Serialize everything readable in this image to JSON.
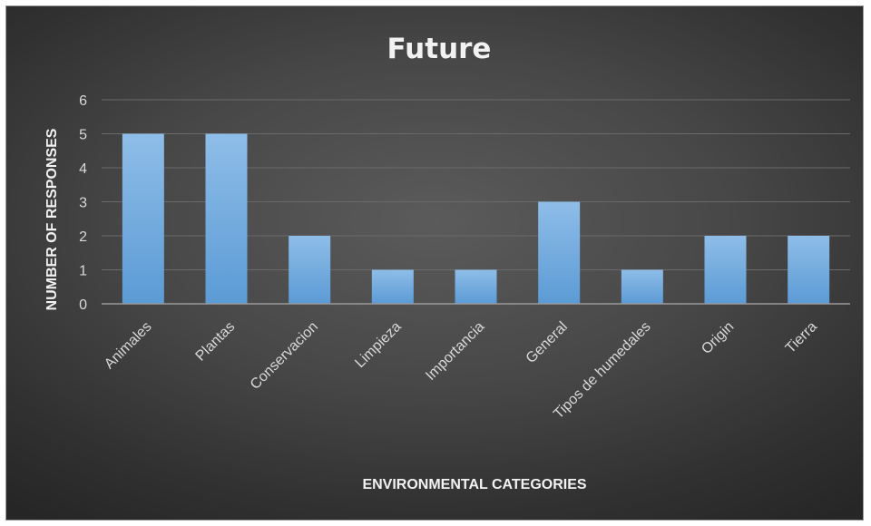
{
  "chart_data": {
    "type": "bar",
    "title": "Future",
    "xlabel": "ENVIRONMENTAL CATEGORIES",
    "ylabel": "NUMBER OF RESPONSES",
    "categories": [
      "Animales",
      "Plantas",
      "Conservacion",
      "Limpieza",
      "Importancia",
      "General",
      "Tipos de humedales",
      "Origin",
      "Tierra"
    ],
    "values": [
      5,
      5,
      2,
      1,
      1,
      3,
      1,
      2,
      2
    ],
    "ylim": [
      0,
      6
    ],
    "yticks": [
      0,
      1,
      2,
      3,
      4,
      5,
      6
    ],
    "grid": true,
    "legend": "none",
    "colors": {
      "bar": "#5b9bd5",
      "bar_light": "#8fbde8",
      "gridline": "#6a6a6a",
      "axis": "#9a9a9a"
    }
  }
}
